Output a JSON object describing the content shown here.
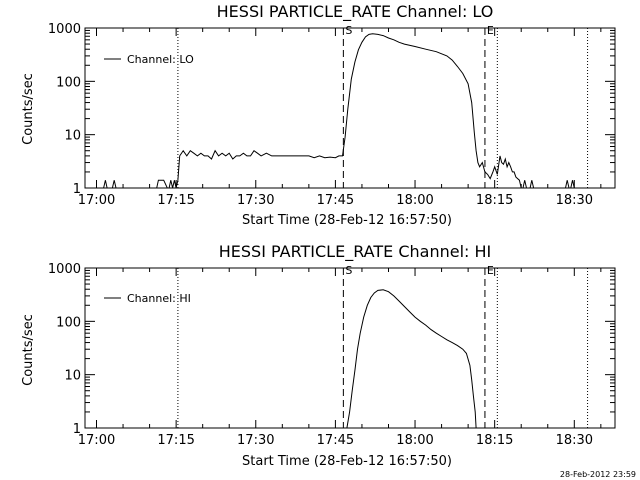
{
  "footer": {
    "timestamp": "28-Feb-2012 23:59"
  },
  "chart_data": [
    {
      "type": "line",
      "title": "HESSI PARTICLE_RATE Channel: LO",
      "xlabel": "Start Time (28-Feb-12 16:57:50)",
      "ylabel": "Counts/sec",
      "y_scale": "log",
      "ylim": [
        1,
        1000
      ],
      "xlim": [
        "16:57:50",
        "18:37:40"
      ],
      "x_ticks": [
        "17:00",
        "17:15",
        "17:30",
        "17:45",
        "18:00",
        "18:15",
        "18:30"
      ],
      "y_ticks": [
        "1",
        "10",
        "100",
        "1000"
      ],
      "legend": {
        "position": "top-left",
        "entries": [
          "Channel: LO"
        ]
      },
      "markers": [
        {
          "label": "S",
          "time": "17:46:30",
          "style": "dashed"
        },
        {
          "label": "E",
          "time": "18:13:10",
          "style": "dashed"
        }
      ],
      "dotted_lines": [
        "17:15:20",
        "18:15:30",
        "18:32:30"
      ],
      "grid": false,
      "series": [
        {
          "name": "Channel: LO",
          "x": [
            "17:01:20",
            "17:01:40",
            "17:02:00",
            "17:02:20",
            "17:03:00",
            "17:03:20",
            "17:03:40",
            "17:04:00",
            "17:04:20",
            "17:11:20",
            "17:11:40",
            "17:12:40",
            "17:13:20",
            "17:13:40",
            "17:14:00",
            "17:14:20",
            "17:14:40",
            "17:15:00",
            "17:15:20",
            "17:15:40",
            "17:16:20",
            "17:17:00",
            "17:17:40",
            "17:18:20",
            "17:19:00",
            "17:19:40",
            "17:20:20",
            "17:21:00",
            "17:21:40",
            "17:22:20",
            "17:23:00",
            "17:23:40",
            "17:24:20",
            "17:25:00",
            "17:25:40",
            "17:26:20",
            "17:27:00",
            "17:27:40",
            "17:28:20",
            "17:29:00",
            "17:29:40",
            "17:30:20",
            "17:31:00",
            "17:32:00",
            "17:33:00",
            "17:34:00",
            "17:35:00",
            "17:36:00",
            "17:37:00",
            "17:38:00",
            "17:39:00",
            "17:40:00",
            "17:41:00",
            "17:42:00",
            "17:43:00",
            "17:44:00",
            "17:45:00",
            "17:45:40",
            "17:46:20",
            "17:46:50",
            "17:47:20",
            "17:48:00",
            "17:48:40",
            "17:49:20",
            "17:50:00",
            "17:50:40",
            "17:51:20",
            "17:52:00",
            "17:53:00",
            "17:54:00",
            "17:55:00",
            "17:56:00",
            "17:57:00",
            "17:58:00",
            "18:00:00",
            "18:02:00",
            "18:04:00",
            "18:06:00",
            "18:07:00",
            "18:08:00",
            "18:09:00",
            "18:10:00",
            "18:10:40",
            "18:11:10",
            "18:11:30",
            "18:11:50",
            "18:12:10",
            "18:12:40",
            "18:13:10",
            "18:13:40",
            "18:14:10",
            "18:14:40",
            "18:15:00",
            "18:15:30",
            "18:16:00",
            "18:16:20",
            "18:16:40",
            "18:17:00",
            "18:17:20",
            "18:17:40",
            "18:18:00",
            "18:18:20",
            "18:18:40",
            "18:19:00",
            "18:19:40",
            "18:20:00",
            "18:20:20",
            "18:20:40",
            "18:21:00",
            "18:21:40",
            "18:22:00",
            "18:22:20",
            "18:22:40",
            "18:28:20",
            "18:28:40",
            "18:29:00",
            "18:29:20",
            "18:29:40",
            "18:30:00",
            "18:30:20"
          ],
          "y": [
            1,
            1.4,
            1,
            1,
            1,
            1.4,
            1,
            1,
            1,
            1,
            1.4,
            1.4,
            1,
            1,
            1.4,
            1,
            1.4,
            1,
            1.4,
            4,
            5,
            4,
            5,
            4.5,
            4,
            4.5,
            4,
            4,
            3.5,
            5,
            4,
            4.5,
            4,
            4.5,
            3.5,
            4,
            4,
            4.5,
            4,
            4,
            5,
            4.5,
            4,
            4.5,
            4,
            4,
            4,
            4,
            4,
            4,
            4,
            4,
            3.7,
            4,
            3.7,
            3.8,
            3.7,
            4,
            4,
            9,
            30,
            110,
            230,
            390,
            540,
            680,
            760,
            780,
            760,
            720,
            650,
            600,
            540,
            500,
            450,
            400,
            360,
            300,
            250,
            190,
            140,
            90,
            40,
            11,
            5,
            3,
            2.5,
            3,
            2,
            1.8,
            1.5,
            2,
            2.5,
            1.8,
            4,
            3,
            2.8,
            3.5,
            2.5,
            3,
            2.5,
            2,
            2,
            1.6,
            1.4,
            1,
            1,
            1.4,
            1,
            1,
            1.4,
            1,
            1,
            1,
            1.4,
            1,
            1,
            1.4,
            1,
            1
          ]
        }
      ]
    },
    {
      "type": "line",
      "title": "HESSI PARTICLE_RATE Channel: HI",
      "xlabel": "Start Time (28-Feb-12 16:57:50)",
      "ylabel": "Counts/sec",
      "y_scale": "log",
      "ylim": [
        1,
        1000
      ],
      "xlim": [
        "16:57:50",
        "18:37:40"
      ],
      "x_ticks": [
        "17:00",
        "17:15",
        "17:30",
        "17:45",
        "18:00",
        "18:15",
        "18:30"
      ],
      "y_ticks": [
        "1",
        "10",
        "100",
        "1000"
      ],
      "legend": {
        "position": "top-left",
        "entries": [
          "Channel: HI"
        ]
      },
      "markers": [
        {
          "label": "S",
          "time": "17:46:30",
          "style": "dashed"
        },
        {
          "label": "E",
          "time": "18:13:10",
          "style": "dashed"
        }
      ],
      "dotted_lines": [
        "17:15:20",
        "18:15:30",
        "18:32:30"
      ],
      "grid": false,
      "series": [
        {
          "name": "Channel: HI",
          "x": [
            "17:47:10",
            "17:47:40",
            "17:48:10",
            "17:48:40",
            "17:49:10",
            "17:49:40",
            "17:50:20",
            "17:51:00",
            "17:51:40",
            "17:52:20",
            "17:53:00",
            "17:54:00",
            "17:55:00",
            "17:56:00",
            "17:57:00",
            "17:58:00",
            "17:59:00",
            "18:00:00",
            "18:01:00",
            "18:02:00",
            "18:03:00",
            "18:04:00",
            "18:05:00",
            "18:06:00",
            "18:07:00",
            "18:08:00",
            "18:09:00",
            "18:09:40",
            "18:10:20",
            "18:10:40",
            "18:11:00",
            "18:11:20",
            "18:11:30"
          ],
          "y": [
            1,
            2,
            5,
            12,
            30,
            60,
            120,
            200,
            280,
            340,
            380,
            390,
            360,
            300,
            240,
            190,
            150,
            120,
            100,
            85,
            70,
            60,
            52,
            45,
            40,
            35,
            30,
            25,
            15,
            8,
            4,
            2,
            1
          ]
        }
      ]
    }
  ]
}
